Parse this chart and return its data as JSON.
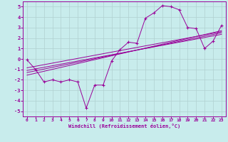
{
  "xlabel": "Windchill (Refroidissement éolien,°C)",
  "background_color": "#c8ecec",
  "grid_color": "#b0d0d0",
  "line_color": "#990099",
  "xlim": [
    -0.5,
    23.5
  ],
  "ylim": [
    -5.5,
    5.5
  ],
  "yticks": [
    -5,
    -4,
    -3,
    -2,
    -1,
    0,
    1,
    2,
    3,
    4,
    5
  ],
  "xticks": [
    0,
    1,
    2,
    3,
    4,
    5,
    6,
    7,
    8,
    9,
    10,
    11,
    12,
    13,
    14,
    15,
    16,
    17,
    18,
    19,
    20,
    21,
    22,
    23
  ],
  "main_x": [
    0,
    1,
    2,
    3,
    4,
    5,
    6,
    7,
    8,
    9,
    10,
    11,
    12,
    13,
    14,
    15,
    16,
    17,
    18,
    19,
    20,
    21,
    22,
    23
  ],
  "main_y": [
    -0.1,
    -1.0,
    -2.2,
    -2.0,
    -2.2,
    -2.0,
    -2.2,
    -4.7,
    -2.5,
    -2.5,
    -0.2,
    0.9,
    1.6,
    1.5,
    3.9,
    4.4,
    5.1,
    5.0,
    4.7,
    3.0,
    2.9,
    1.0,
    1.7,
    3.2
  ],
  "reg_lines": [
    {
      "x0": 0,
      "y0": -1.55,
      "x1": 23,
      "y1": 2.7
    },
    {
      "x0": 0,
      "y0": -1.3,
      "x1": 23,
      "y1": 2.5
    },
    {
      "x0": 0,
      "y0": -1.1,
      "x1": 23,
      "y1": 2.35
    },
    {
      "x0": 0,
      "y0": -0.85,
      "x1": 23,
      "y1": 2.6
    }
  ]
}
